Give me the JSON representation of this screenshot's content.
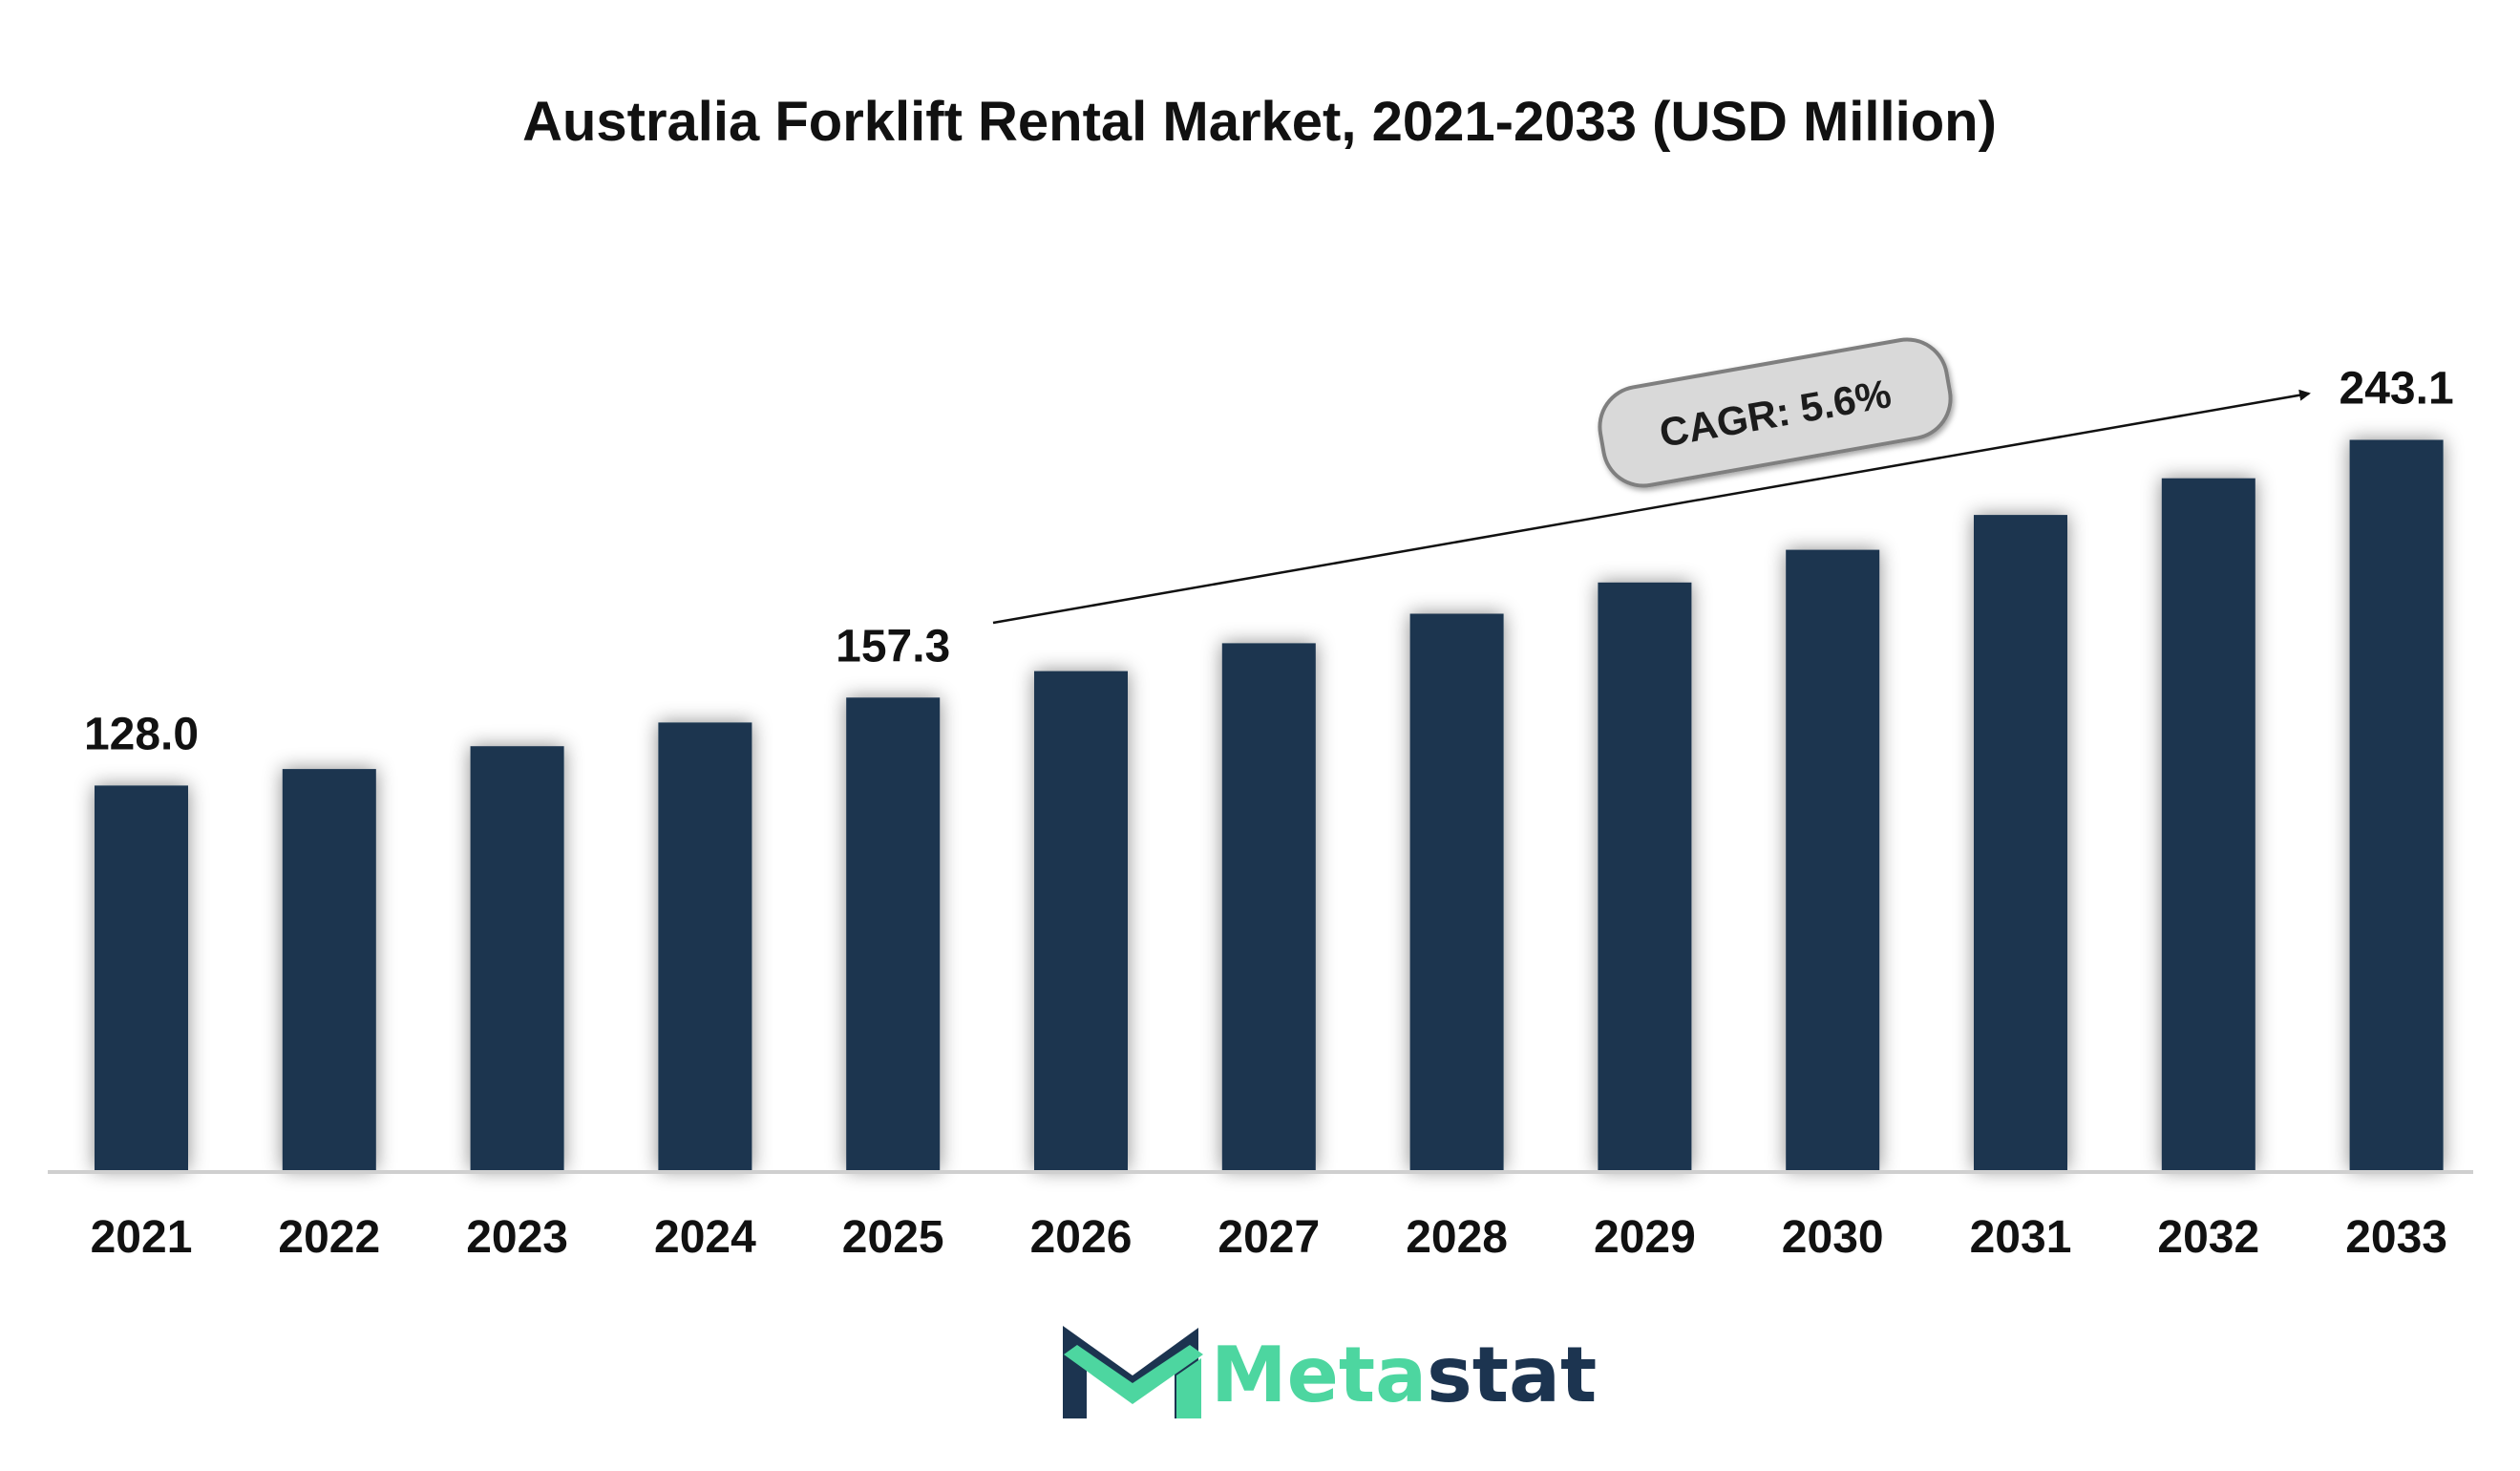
{
  "colors": {
    "bar": "#1c3450",
    "axis": "#cfcfcf",
    "text": "#111111",
    "cagr_fill": "#d9d9d9",
    "cagr_stroke": "#7f7f7f",
    "logo_green": "#4dd6a0",
    "logo_navy": "#1c3450"
  },
  "chart_data": {
    "type": "bar",
    "title": "Australia Forklift Rental Market, 2021-2033 (USD Million)",
    "xlabel": "",
    "ylabel": "",
    "categories": [
      "2021",
      "2022",
      "2023",
      "2024",
      "2025",
      "2026",
      "2027",
      "2028",
      "2029",
      "2030",
      "2031",
      "2032",
      "2033"
    ],
    "values": [
      128.0,
      133.5,
      141.1,
      149.0,
      157.3,
      166.1,
      175.4,
      185.2,
      195.6,
      206.5,
      218.1,
      230.3,
      243.1
    ],
    "ylim": [
      0,
      260
    ],
    "grid": false,
    "legend": "none",
    "data_labels": [
      {
        "category": "2021",
        "text": "128.0"
      },
      {
        "category": "2025",
        "text": "157.3"
      },
      {
        "category": "2033",
        "text": "243.1"
      }
    ],
    "annotation": {
      "text": "CAGR: 5.6%",
      "from_category": "2025",
      "to_category": "2033"
    }
  },
  "logo": {
    "part1": "Meta",
    "part2": "stat",
    "icon": "metastat-m-logo-icon"
  }
}
